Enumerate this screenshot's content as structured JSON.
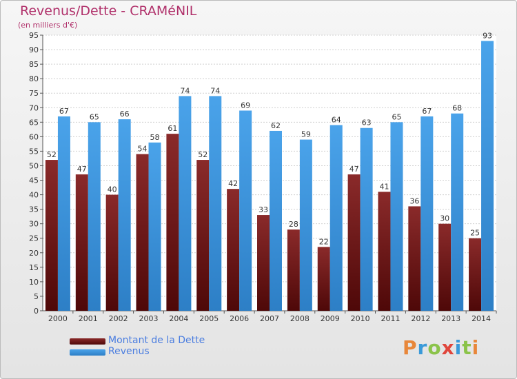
{
  "title": "Revenus/Dette - CRAMéNIL",
  "subtitle": "(en milliers d'€)",
  "logo": {
    "text": "Proxiti",
    "colors": [
      "#e8873a",
      "#3a9ad9",
      "#8bc34a",
      "#e0463c",
      "#3a9ad9",
      "#8bc34a",
      "#e8873a"
    ]
  },
  "chart_data": {
    "type": "bar",
    "categories": [
      "2000",
      "2001",
      "2002",
      "2003",
      "2004",
      "2005",
      "2006",
      "2007",
      "2008",
      "2009",
      "2010",
      "2011",
      "2012",
      "2013",
      "2014"
    ],
    "series": [
      {
        "name": "Montant de la Dette",
        "color": "#7a1a1a",
        "values": [
          52,
          47,
          40,
          54,
          61,
          52,
          42,
          33,
          28,
          22,
          47,
          41,
          36,
          30,
          25
        ]
      },
      {
        "name": "Revenus",
        "color": "#3d95df",
        "values": [
          67,
          65,
          66,
          58,
          74,
          74,
          69,
          62,
          59,
          64,
          63,
          65,
          67,
          68,
          93
        ]
      }
    ],
    "ylim": [
      0,
      95
    ],
    "ytick_step": 5,
    "grid": true,
    "legend_position": "bottom-left"
  }
}
